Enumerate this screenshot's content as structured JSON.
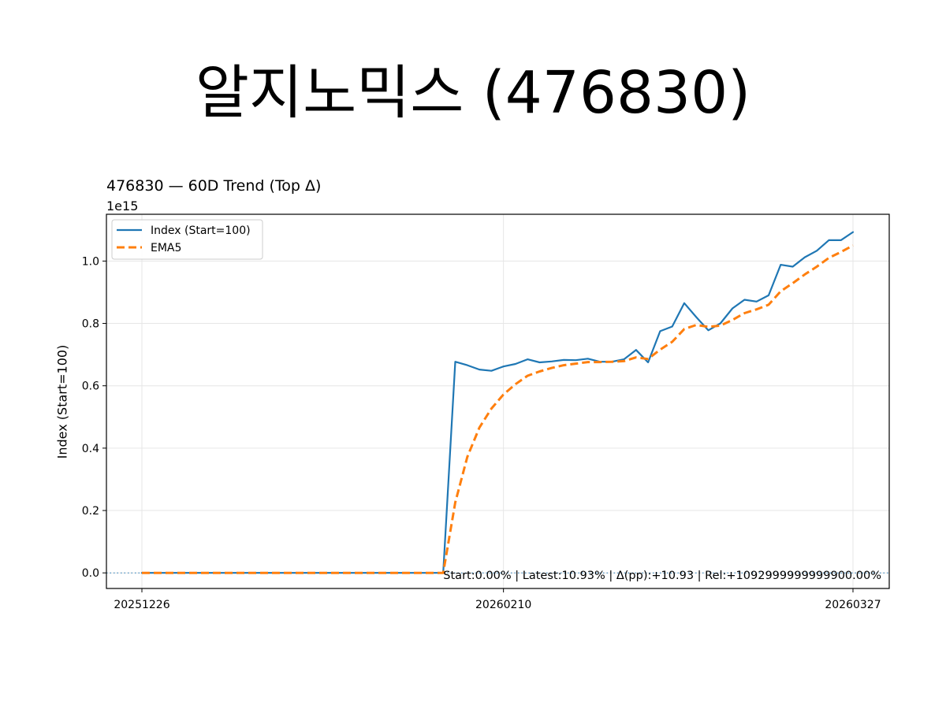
{
  "page_title": "알지노믹스 (476830)",
  "chart_data": {
    "type": "line",
    "title": "476830 — 60D Trend (Top Δ)",
    "ylabel": "Index (Start=100)",
    "xlabel": "",
    "y_exponent_label": "1e15",
    "ylim": [
      -0.05,
      1.15
    ],
    "y_ticks": [
      0.0,
      0.2,
      0.4,
      0.6,
      0.8,
      1.0
    ],
    "y_tick_labels": [
      "0.0",
      "0.2",
      "0.4",
      "0.6",
      "0.8",
      "1.0"
    ],
    "x_tick_labels": [
      "20251226",
      "20260210",
      "20260327"
    ],
    "x_tick_indices": [
      0,
      30,
      59
    ],
    "grid": true,
    "legend_position": "upper-left",
    "baseline": 0,
    "stats_text": "Start:0.00% | Latest:10.93% | Δ(pp):+10.93 | Rel:+1092999999999900.00%",
    "series": [
      {
        "name": "Index (Start=100)",
        "color": "#1f77b4",
        "style": "solid",
        "values": [
          0,
          0,
          0,
          0,
          0,
          0,
          0,
          0,
          0,
          0,
          0,
          0,
          0,
          0,
          0,
          0,
          0,
          0,
          0,
          0,
          0,
          0,
          0,
          0,
          0,
          0,
          0.677,
          0.666,
          0.652,
          0.648,
          0.662,
          0.67,
          0.685,
          0.675,
          0.678,
          0.683,
          0.682,
          0.687,
          0.677,
          0.677,
          0.685,
          0.715,
          0.675,
          0.775,
          0.79,
          0.865,
          0.82,
          0.778,
          0.8,
          0.848,
          0.876,
          0.87,
          0.89,
          0.988,
          0.982,
          1.012,
          1.033,
          1.067,
          1.067,
          1.093
        ]
      },
      {
        "name": "EMA5",
        "color": "#ff7f0e",
        "style": "dashed",
        "values": [
          0,
          0,
          0,
          0,
          0,
          0,
          0,
          0,
          0,
          0,
          0,
          0,
          0,
          0,
          0,
          0,
          0,
          0,
          0,
          0,
          0,
          0,
          0,
          0,
          0,
          0,
          0.226,
          0.372,
          0.466,
          0.527,
          0.572,
          0.605,
          0.632,
          0.646,
          0.657,
          0.666,
          0.671,
          0.676,
          0.676,
          0.677,
          0.679,
          0.691,
          0.686,
          0.716,
          0.741,
          0.782,
          0.795,
          0.789,
          0.793,
          0.811,
          0.833,
          0.845,
          0.86,
          0.903,
          0.929,
          0.957,
          0.982,
          1.01,
          1.029,
          1.05
        ]
      }
    ]
  }
}
